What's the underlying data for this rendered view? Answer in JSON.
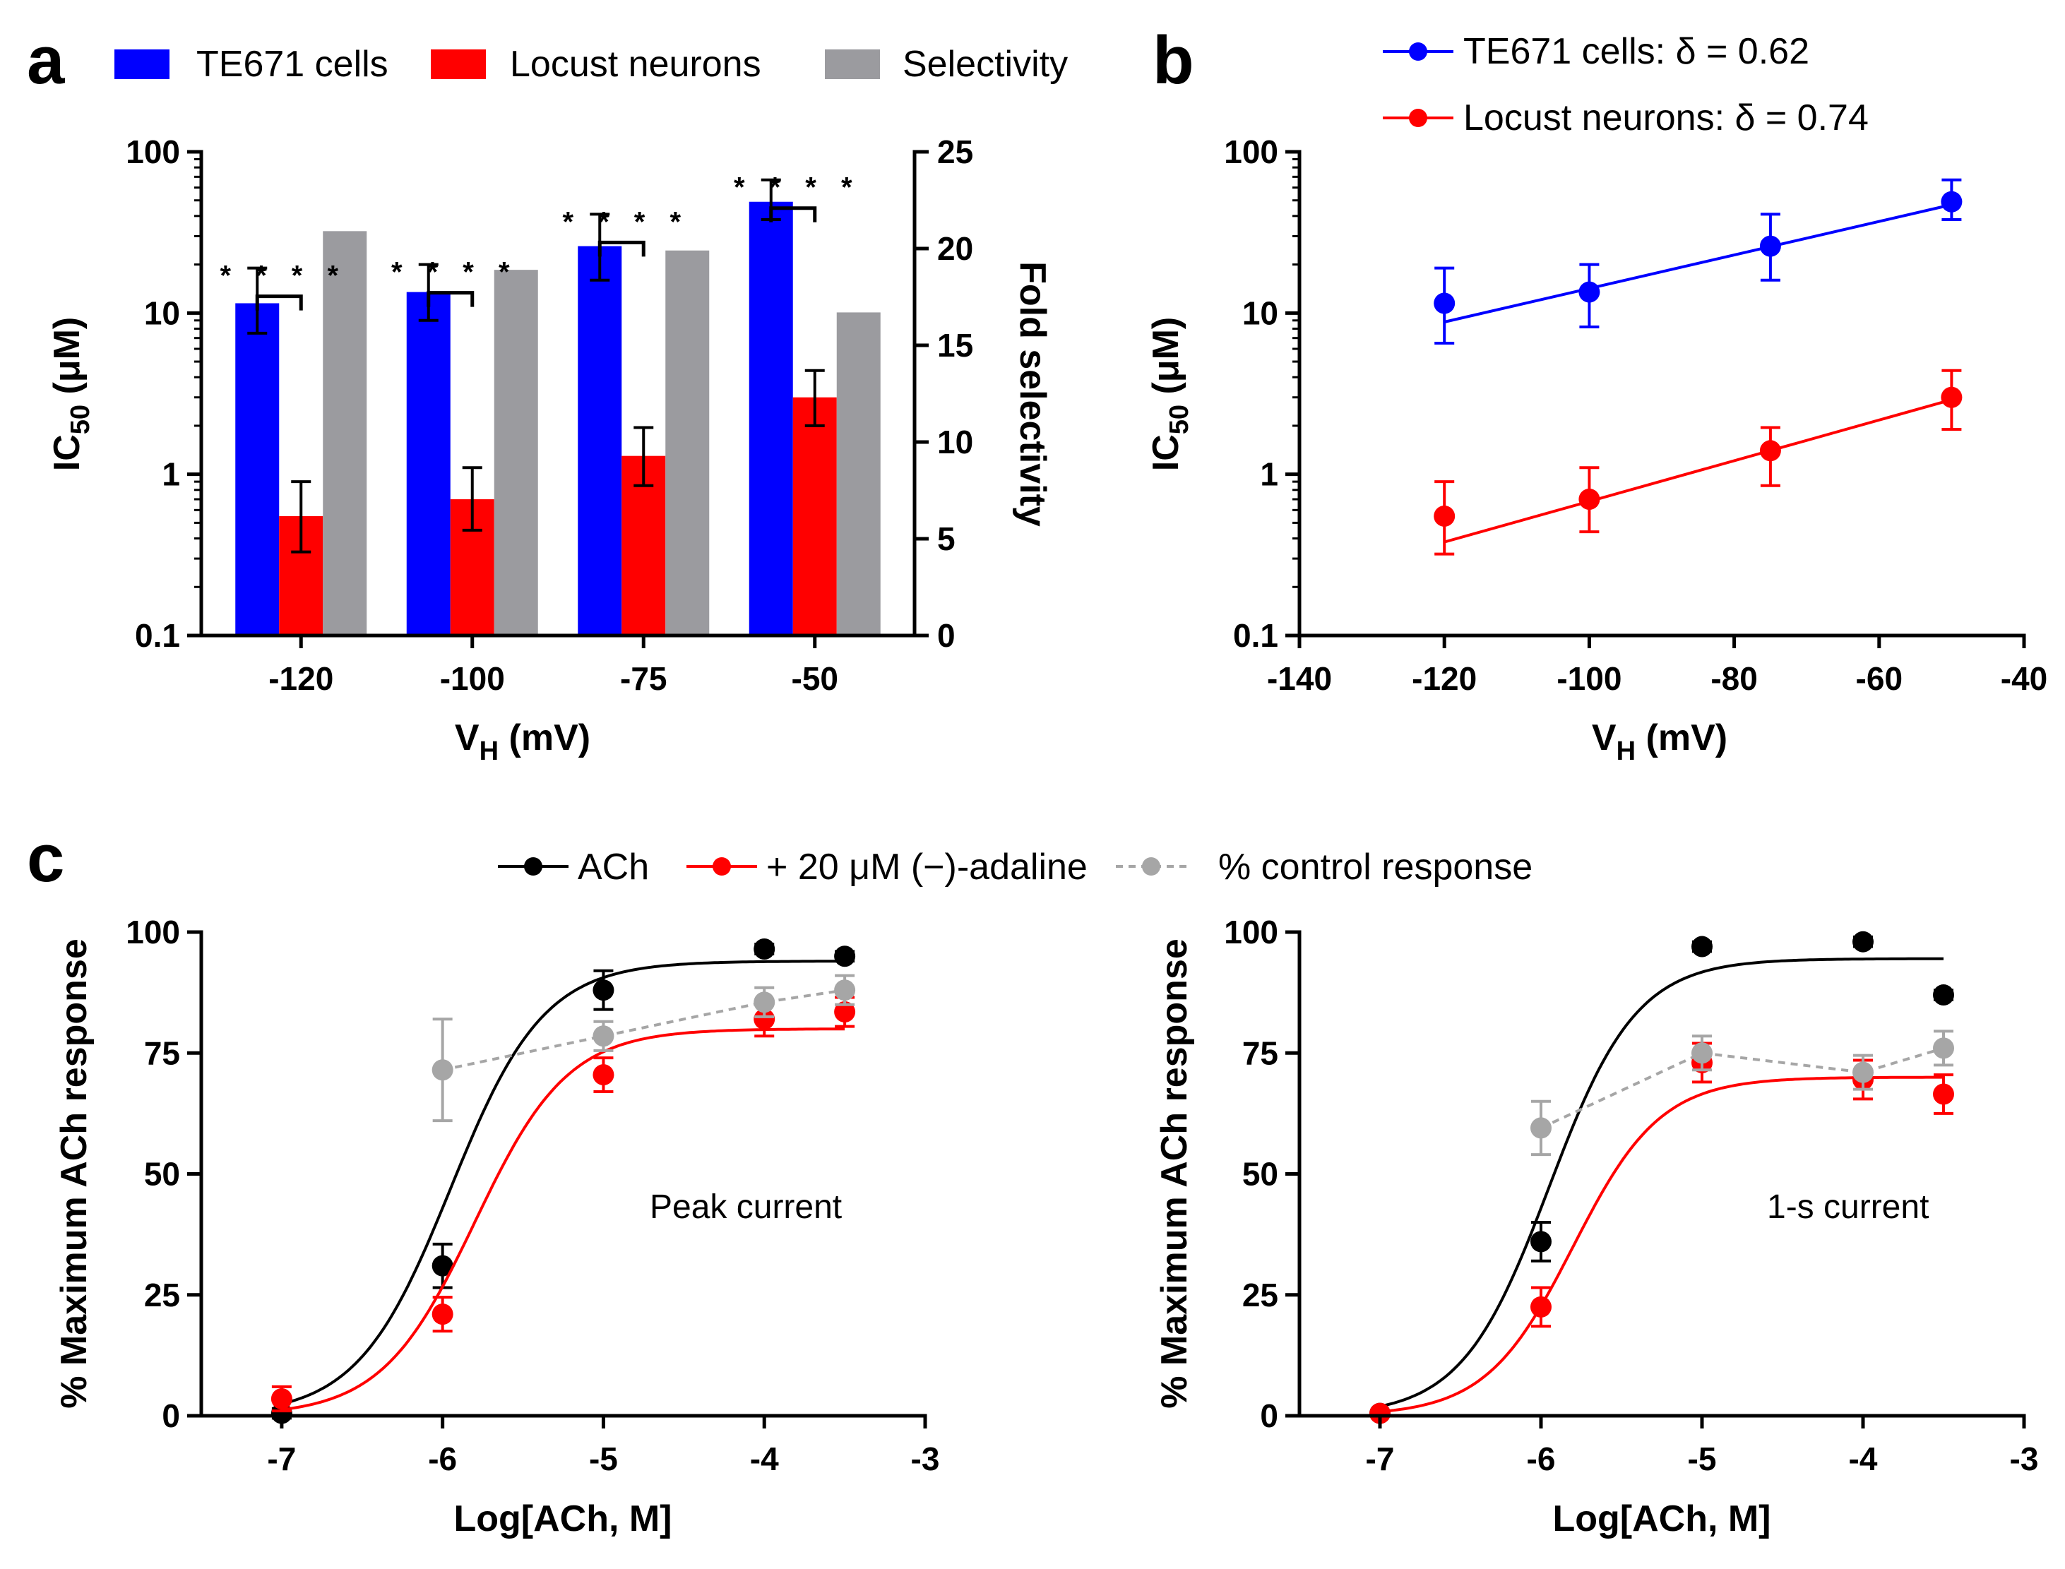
{
  "chart_data": [
    {
      "panel": "a",
      "type": "bar",
      "categories": [
        "-120",
        "-100",
        "-75",
        "-50"
      ],
      "xlabel_main": "V",
      "xlabel_sub": "H",
      "xlabel_tail": " (mV)",
      "ylabel_main": "IC",
      "ylabel_sub": "50",
      "ylabel_tail": " (μM)",
      "y2label": "Fold selectivity",
      "yscale": "log",
      "ylim": [
        0.1,
        100
      ],
      "yticks": [
        "0.1",
        "1",
        "10",
        "100"
      ],
      "y2lim": [
        0,
        25
      ],
      "y2ticks": [
        "0",
        "5",
        "10",
        "15",
        "20",
        "25"
      ],
      "significance": "* * * *",
      "series": [
        {
          "name": "TE671 cells",
          "color": "#0000ff",
          "axis": "left",
          "values": [
            11.5,
            13.5,
            26,
            49
          ],
          "err_low": [
            7.5,
            9,
            16,
            38
          ],
          "err_high": [
            19,
            20,
            41,
            67
          ]
        },
        {
          "name": "Locust neurons",
          "color": "#ff0000",
          "axis": "left",
          "values": [
            0.55,
            0.7,
            1.3,
            3
          ],
          "err_low": [
            0.33,
            0.45,
            0.85,
            2
          ],
          "err_high": [
            0.9,
            1.1,
            1.95,
            4.4
          ]
        },
        {
          "name": "Selectivity",
          "color": "#9b9b9f",
          "axis": "right",
          "values": [
            20.9,
            18.9,
            19.9,
            16.7
          ]
        }
      ]
    },
    {
      "panel": "b",
      "type": "scatter",
      "x": [
        -120,
        -100,
        -75,
        -50
      ],
      "xlabel_main": "V",
      "xlabel_sub": "H",
      "xlabel_tail": " (mV)",
      "ylabel_main": "IC",
      "ylabel_sub": "50",
      "ylabel_tail": " (μM)",
      "xlim": [
        -140,
        -40
      ],
      "xticks": [
        "-140",
        "-120",
        "-100",
        "-80",
        "-60",
        "-40"
      ],
      "yscale": "log",
      "ylim": [
        0.1,
        100
      ],
      "yticks": [
        "0.1",
        "1",
        "10",
        "100"
      ],
      "series": [
        {
          "name": "TE671 cells: δ = 0.62",
          "color": "#0000ff",
          "values": [
            11.5,
            13.5,
            26,
            49
          ],
          "err_low": [
            6.5,
            8.2,
            16,
            38
          ],
          "err_high": [
            19,
            20,
            41,
            67
          ],
          "fit": [
            [
              -120,
              8.8
            ],
            [
              -50,
              47
            ]
          ]
        },
        {
          "name": "Locust neurons: δ = 0.74",
          "color": "#ff0000",
          "values": [
            0.55,
            0.7,
            1.4,
            3
          ],
          "err_low": [
            0.32,
            0.44,
            0.85,
            1.9
          ],
          "err_high": [
            0.9,
            1.1,
            1.95,
            4.4
          ],
          "fit": [
            [
              -120,
              0.38
            ],
            [
              -50,
              2.9
            ]
          ]
        }
      ]
    },
    {
      "panel": "c-left",
      "type": "scatter",
      "annotation": "Peak current",
      "x": [
        -7,
        -6,
        -5,
        -4,
        -3.5
      ],
      "xlabel": "Log[ACh, M]",
      "ylabel": "% Maximum ACh response",
      "xlim": [
        -7.5,
        -3
      ],
      "xticks": [
        "-7",
        "-6",
        "-5",
        "-4",
        "-3"
      ],
      "ylim": [
        0,
        100
      ],
      "yticks": [
        "0",
        "25",
        "50",
        "75",
        "100"
      ],
      "series": [
        {
          "name": "ACh",
          "color": "#000000",
          "values": [
            0.5,
            31,
            88,
            96.5,
            95
          ],
          "err": [
            1,
            4.5,
            4,
            1,
            1
          ],
          "fit": {
            "bottom": 0,
            "top": 94,
            "logEC50": -5.95,
            "hill": 1.5
          }
        },
        {
          "name": "+ 20 μM (−)-adaline",
          "color": "#ff0000",
          "values": [
            3.5,
            21,
            70.5,
            82,
            83.5
          ],
          "err": [
            2.5,
            3.5,
            3.5,
            3.5,
            3
          ],
          "fit": {
            "bottom": 0,
            "top": 80,
            "logEC50": -5.8,
            "hill": 1.5
          }
        },
        {
          "name": "% control response",
          "color": "#a6a6a6",
          "dashed": true,
          "x": [
            -6,
            -5,
            -4,
            -3.5
          ],
          "values": [
            71.5,
            78.5,
            85.5,
            88
          ],
          "err": [
            10.5,
            3,
            3,
            3
          ]
        }
      ]
    },
    {
      "panel": "c-right",
      "type": "scatter",
      "annotation": "1-s current",
      "x": [
        -7,
        -6,
        -5,
        -4,
        -3.5
      ],
      "xlabel": "Log[ACh, M]",
      "ylabel": "% Maximum ACh response",
      "xlim": [
        -7.5,
        -3
      ],
      "xticks": [
        "-7",
        "-6",
        "-5",
        "-4",
        "-3"
      ],
      "ylim": [
        0,
        100
      ],
      "yticks": [
        "0",
        "25",
        "50",
        "75",
        "100"
      ],
      "series": [
        {
          "name": "ACh",
          "color": "#000000",
          "values": [
            0.5,
            36,
            97,
            98,
            87
          ],
          "err": [
            0.5,
            4,
            1,
            1,
            1
          ],
          "fit": {
            "bottom": 0,
            "top": 94.5,
            "logEC50": -5.95,
            "hill": 1.6
          }
        },
        {
          "name": "+ 20 μM (−)-adaline",
          "color": "#ff0000",
          "values": [
            0.5,
            22.5,
            73,
            69.5,
            66.5
          ],
          "err": [
            0.5,
            4,
            4,
            4,
            4
          ],
          "fit": {
            "bottom": 0,
            "top": 70,
            "logEC50": -5.8,
            "hill": 1.6
          }
        },
        {
          "name": "% control response",
          "color": "#a6a6a6",
          "dashed": true,
          "x": [
            -6,
            -5,
            -4,
            -3.5
          ],
          "values": [
            59.5,
            75,
            71,
            76
          ],
          "err": [
            5.5,
            3.5,
            3.5,
            3.5
          ]
        }
      ]
    }
  ],
  "legend_c": {
    "ach": "ACh",
    "adaline": "+ 20 μM (−)-adaline",
    "control": "% control response"
  },
  "panel_labels": {
    "a": "a",
    "b": "b",
    "c": "c"
  }
}
